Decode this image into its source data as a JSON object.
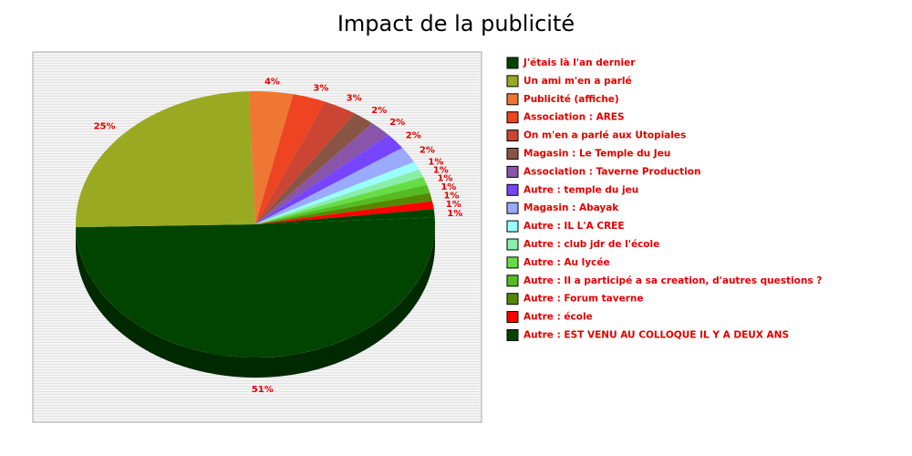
{
  "chart_data": {
    "type": "pie",
    "title": "Impact de la publicité",
    "categories": [
      "J'étais là l'an dernier",
      "Un ami m'en a parlé",
      "Publicité (affiche)",
      "Association : ARES",
      "On m'en a parlé aux Utopiales",
      "Magasin : Le Temple du Jeu",
      "Association : Taverne Production",
      "Autre : temple du jeu",
      "Magasin : Abayak",
      "Autre : IL L'A CREE",
      "Autre : club jdr de l'école",
      "Autre : Au lycée",
      "Autre : Il a participé a sa creation, d'autres questions ?",
      "Autre : Forum taverne",
      "Autre : école",
      "Autre : EST VENU AU COLLOQUE IL Y A DEUX ANS"
    ],
    "values": [
      51,
      25,
      4,
      3,
      3,
      2,
      2,
      2,
      2,
      1,
      1,
      1,
      1,
      1,
      1,
      1
    ],
    "value_labels": [
      "51%",
      "25%",
      "4%",
      "3%",
      "3%",
      "2%",
      "2%",
      "2%",
      "2%",
      "1%",
      "1%",
      "1%",
      "1%",
      "1%",
      "1%",
      "1%"
    ],
    "colors": [
      "#004400",
      "#99aa22",
      "#ee7733",
      "#ee4422",
      "#cc4433",
      "#885544",
      "#8855aa",
      "#7744ff",
      "#99aaff",
      "#99ffff",
      "#88eeaa",
      "#66dd44",
      "#55bb22",
      "#558800",
      "#ff0000",
      "#004400"
    ],
    "legend": "right"
  }
}
